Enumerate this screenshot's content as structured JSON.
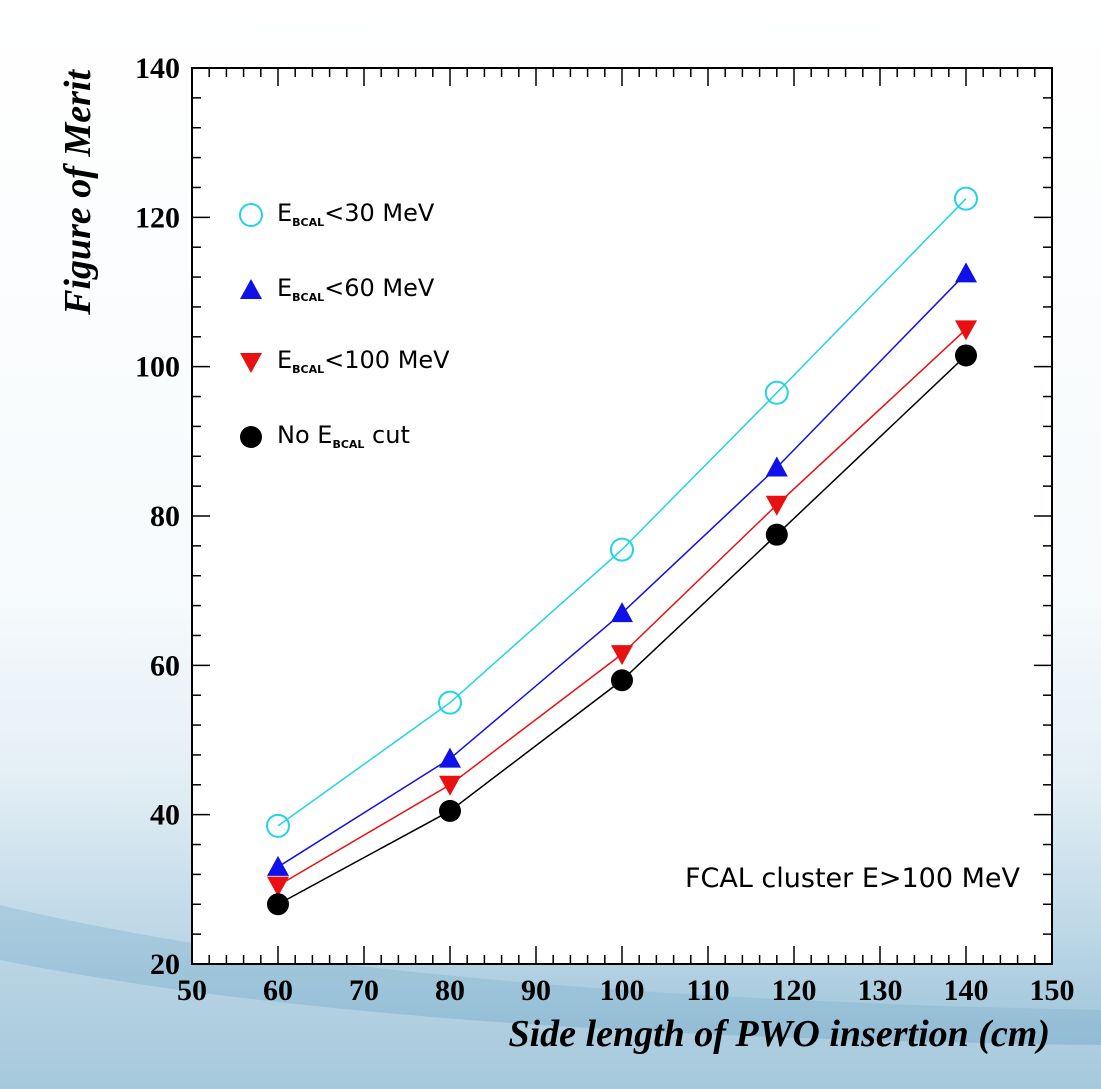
{
  "chart_data": {
    "type": "line",
    "xlabel": "Side length of PWO insertion (cm)",
    "ylabel": "Figure of Merit",
    "xlim": [
      50,
      150
    ],
    "ylim": [
      20,
      140
    ],
    "x_ticks": [
      50,
      60,
      70,
      80,
      90,
      100,
      110,
      120,
      130,
      140,
      150
    ],
    "y_ticks": [
      20,
      40,
      60,
      80,
      100,
      120,
      140
    ],
    "grid": false,
    "legend_position": "top-left",
    "x": [
      60,
      80,
      100,
      118,
      140
    ],
    "series": [
      {
        "name": "E_BCAL<30 MeV",
        "legend_main": "E",
        "legend_sub": "BCAL",
        "legend_rest": "<30 MeV",
        "marker": "open-circle",
        "color": "#22d3e6",
        "values": [
          38.5,
          55,
          75.5,
          96.5,
          122.5
        ]
      },
      {
        "name": "E_BCAL<60 MeV",
        "legend_main": "E",
        "legend_sub": "BCAL",
        "legend_rest": "<60 MeV",
        "marker": "triangle-up",
        "color": "#1010e8",
        "values": [
          33,
          47.5,
          67,
          86.5,
          112.5
        ]
      },
      {
        "name": "E_BCAL<100 MeV",
        "legend_main": "E",
        "legend_sub": "BCAL",
        "legend_rest": "<100 MeV",
        "marker": "triangle-down",
        "color": "#e81010",
        "values": [
          30.5,
          44,
          61.5,
          81.5,
          105
        ]
      },
      {
        "name": "No E_BCAL cut",
        "legend_main": "No E",
        "legend_sub": "BCAL",
        "legend_rest": " cut",
        "marker": "filled-circle",
        "color": "#000000",
        "values": [
          28,
          40.5,
          58,
          77.5,
          101.5
        ]
      }
    ],
    "annotation": "FCAL cluster E>100 MeV"
  }
}
